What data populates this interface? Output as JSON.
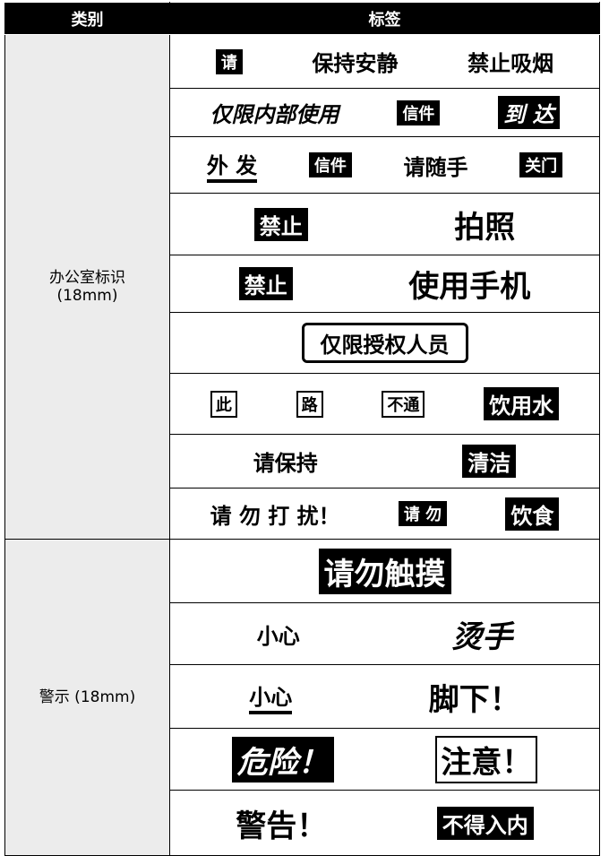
{
  "header": [
    "类别",
    "标签"
  ],
  "groups": [
    {
      "category": [
        "办公室标识",
        "(18mm)"
      ],
      "rows": [
        [
          "请",
          "保持安静",
          "禁止吸烟"
        ],
        [
          "仅限内部使用",
          "信件",
          "到 达"
        ],
        [
          "外 发",
          "信件",
          "请随手",
          "关门"
        ],
        [
          "禁止",
          "拍照"
        ],
        [
          "禁止",
          "使用手机"
        ],
        [
          "仅限授权人员"
        ],
        [
          "此",
          "路",
          "不通",
          "饮用水"
        ],
        [
          "请保持",
          "清洁"
        ],
        [
          "请 勿 打 扰！",
          "请 勿",
          "饮食"
        ]
      ]
    },
    {
      "category": [
        "警示 (18mm)"
      ],
      "rows": [
        [
          "请勿触摸"
        ],
        [
          "小心",
          "烫手"
        ],
        [
          "小心",
          "脚下！"
        ],
        [
          "危险！",
          "注意！"
        ],
        [
          "警告！",
          "不得入内"
        ]
      ]
    }
  ]
}
